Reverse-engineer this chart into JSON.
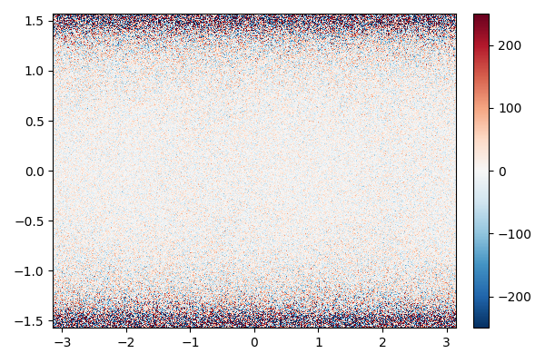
{
  "xlim": [
    -3.141592653589793,
    3.141592653589793
  ],
  "ylim": [
    -1.5707963267948966,
    1.5707963267948966
  ],
  "xticks": [
    -3,
    -2,
    -1,
    0,
    1,
    2,
    3
  ],
  "yticks": [
    -1.5,
    -1.0,
    -0.5,
    0.0,
    0.5,
    1.0,
    1.5
  ],
  "cmap": "RdBu_r",
  "vmin": -250,
  "vmax": 250,
  "colorbar_ticks": [
    -200,
    -100,
    0,
    100,
    200
  ],
  "nx": 500,
  "ny": 350,
  "seed": 42,
  "figsize": [
    6.0,
    4.0
  ],
  "dpi": 100
}
